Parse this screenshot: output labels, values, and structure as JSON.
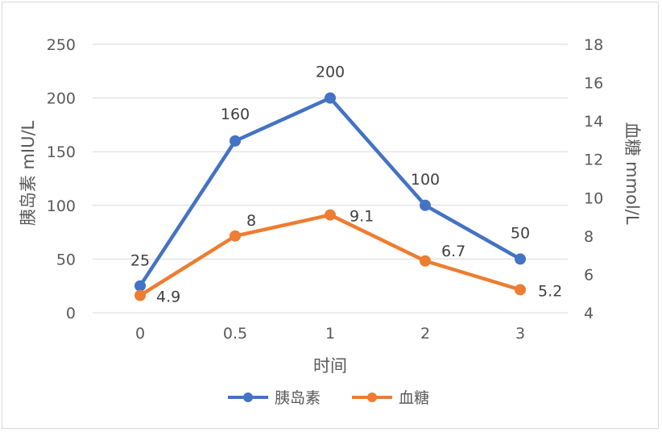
{
  "chart_data": {
    "type": "line",
    "categories": [
      "0",
      "0.5",
      "1",
      "2",
      "3"
    ],
    "xlabel": "时间",
    "ylabel_left": "胰岛素 mIU/L",
    "ylabel_right": "血糖 mmol/L",
    "ylim_left": [
      0,
      250
    ],
    "yticks_left": [
      "0",
      "50",
      "100",
      "150",
      "200",
      "250"
    ],
    "ylim_right": [
      4,
      18
    ],
    "yticks_right": [
      "4",
      "6",
      "8",
      "10",
      "12",
      "14",
      "16",
      "18"
    ],
    "grid": true,
    "legend_position": "bottom",
    "series": [
      {
        "name": "胰岛素",
        "axis": "left",
        "color": "#4472C4",
        "values": [
          25,
          160,
          200,
          100,
          50
        ],
        "labels": [
          "25",
          "160",
          "200",
          "100",
          "50"
        ]
      },
      {
        "name": "血糖",
        "axis": "right",
        "color": "#ED7D31",
        "values": [
          4.9,
          8,
          9.1,
          6.7,
          5.2
        ],
        "labels": [
          "4.9",
          "8",
          "9.1",
          "6.7",
          "5.2"
        ]
      }
    ]
  }
}
